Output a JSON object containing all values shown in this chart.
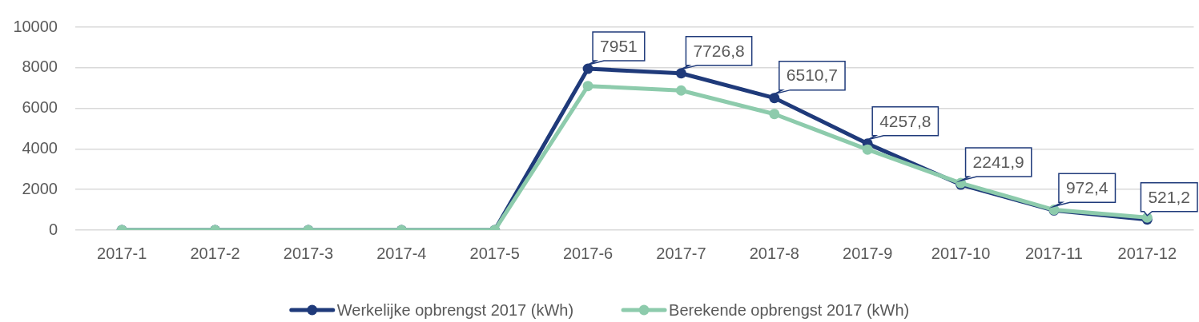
{
  "chart_data": {
    "type": "line",
    "categories": [
      "2017-1",
      "2017-2",
      "2017-3",
      "2017-4",
      "2017-5",
      "2017-6",
      "2017-7",
      "2017-8",
      "2017-9",
      "2017-10",
      "2017-11",
      "2017-12"
    ],
    "series": [
      {
        "name": "Werkelijke opbrengst 2017 (kWh)",
        "color": "#1f3a7a",
        "values": [
          0,
          0,
          0,
          0,
          0,
          7951,
          7726.8,
          6510.7,
          4257.8,
          2241.9,
          972.4,
          521.2
        ],
        "value_labels": [
          null,
          null,
          null,
          null,
          null,
          "7951",
          "7726,8",
          "6510,7",
          "4257,8",
          "2241,9",
          "972,4",
          "521,2"
        ]
      },
      {
        "name": "Berekende opbrengst 2017 (kWh)",
        "color": "#8dcbac",
        "values": [
          0,
          0,
          0,
          0,
          0,
          7100,
          6880,
          5720,
          3970,
          2320,
          1000,
          620
        ]
      }
    ],
    "ylim": [
      0,
      10000
    ],
    "yticks": [
      0,
      2000,
      4000,
      6000,
      8000,
      10000
    ],
    "grid": "y",
    "legend": "bottom",
    "marker": "circle",
    "line_style": "solid"
  }
}
